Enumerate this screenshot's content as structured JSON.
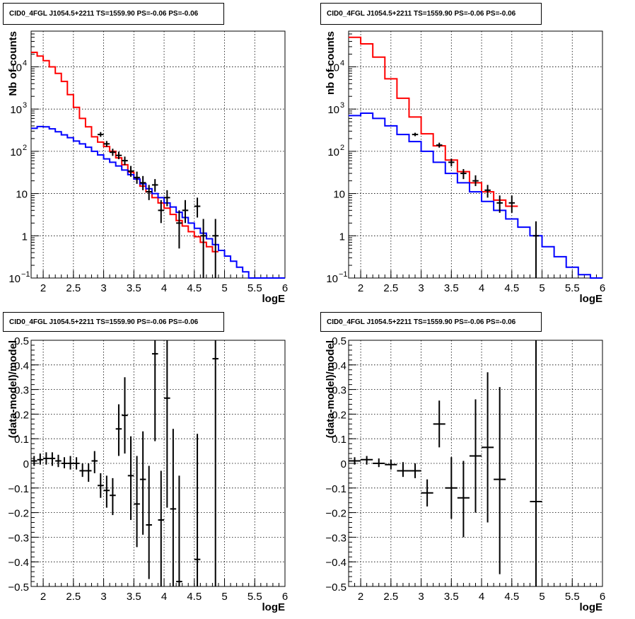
{
  "chart_data": [
    {
      "type": "line",
      "title": "CID0_4FGL J1054.5+2211 TS=1559.90 PS=-0.06 PS=-0.06",
      "xlabel": "logE",
      "ylabel": "Nb of counts",
      "xlim": [
        1.8,
        6
      ],
      "ylim": [
        0.1,
        70000
      ],
      "yscale": "log",
      "grid": true,
      "xticks": [
        "2",
        "2.5",
        "3",
        "3.5",
        "4",
        "4.5",
        "5",
        "5.5",
        "6"
      ],
      "yticks": [
        {
          "value": 0.1,
          "label": "10",
          "sup": "−1"
        },
        {
          "value": 1,
          "label": "1",
          "sup": ""
        },
        {
          "value": 10,
          "label": "10",
          "sup": ""
        },
        {
          "value": 100,
          "label": "10",
          "sup": "2"
        },
        {
          "value": 1000,
          "label": "10",
          "sup": "3"
        },
        {
          "value": 10000,
          "label": "10",
          "sup": "4"
        }
      ],
      "series": [
        {
          "kind": "hist",
          "color": "#ff0000",
          "edges": [
            1.8,
            1.9,
            2.0,
            2.1,
            2.2,
            2.3,
            2.4,
            2.5,
            2.6,
            2.7,
            2.8,
            2.9,
            3.0,
            3.1,
            3.2,
            3.3,
            3.4,
            3.5,
            3.6,
            3.7,
            3.8,
            3.9,
            4.0,
            4.1,
            4.2,
            4.3,
            4.4,
            4.5,
            4.6,
            4.7,
            4.8,
            4.9
          ],
          "values": [
            22000,
            18000,
            14000,
            10000,
            7000,
            4500,
            2200,
            1100,
            600,
            380,
            220,
            165,
            130,
            100,
            70,
            48,
            32,
            22,
            15,
            11,
            8,
            6,
            4.5,
            3.2,
            2.3,
            1.7,
            1.25,
            0.95,
            0.7,
            0.55,
            0.42
          ]
        },
        {
          "kind": "hist",
          "color": "#0000ff",
          "edges": [
            1.8,
            1.9,
            2.0,
            2.1,
            2.2,
            2.3,
            2.4,
            2.5,
            2.6,
            2.7,
            2.8,
            2.9,
            3.0,
            3.1,
            3.2,
            3.3,
            3.4,
            3.5,
            3.6,
            3.7,
            3.8,
            3.9,
            4.0,
            4.1,
            4.2,
            4.3,
            4.4,
            4.5,
            4.6,
            4.7,
            4.8,
            4.9,
            5.0,
            5.1,
            5.2,
            5.3,
            5.4,
            5.5,
            5.6,
            5.7,
            5.8,
            5.9,
            6.0
          ],
          "values": [
            350,
            385,
            380,
            340,
            290,
            245,
            210,
            175,
            150,
            125,
            100,
            82,
            66,
            55,
            45,
            36,
            28,
            22,
            17,
            13,
            10,
            8,
            6,
            4.8,
            3.6,
            2.7,
            2.0,
            1.5,
            1.15,
            0.85,
            0.62,
            0.45,
            0.33,
            0.25,
            0.18,
            0.14,
            0.1,
            0.1,
            0.1,
            0.1,
            0.1,
            0.1
          ]
        },
        {
          "kind": "points",
          "color": "#000000",
          "points": [
            {
              "x": 2.95,
              "y": 250,
              "ylo": 220,
              "yhi": 285
            },
            {
              "x": 3.05,
              "y": 150,
              "ylo": 128,
              "yhi": 175
            },
            {
              "x": 3.15,
              "y": 95,
              "ylo": 78,
              "yhi": 115
            },
            {
              "x": 3.25,
              "y": 80,
              "ylo": 65,
              "yhi": 98
            },
            {
              "x": 3.35,
              "y": 60,
              "ylo": 47,
              "yhi": 75
            },
            {
              "x": 3.45,
              "y": 34,
              "ylo": 25,
              "yhi": 45
            },
            {
              "x": 3.55,
              "y": 24,
              "ylo": 17,
              "yhi": 33
            },
            {
              "x": 3.65,
              "y": 18,
              "ylo": 12,
              "yhi": 26
            },
            {
              "x": 3.75,
              "y": 11,
              "ylo": 7,
              "yhi": 16
            },
            {
              "x": 3.85,
              "y": 16,
              "ylo": 11,
              "yhi": 22
            },
            {
              "x": 3.95,
              "y": 4,
              "ylo": 2,
              "yhi": 7
            },
            {
              "x": 4.05,
              "y": 8,
              "ylo": 5,
              "yhi": 12
            },
            {
              "x": 4.25,
              "y": 2,
              "ylo": 0.5,
              "yhi": 4
            },
            {
              "x": 4.35,
              "y": 4,
              "ylo": 2,
              "yhi": 7
            },
            {
              "x": 4.55,
              "y": 5,
              "ylo": 2.7,
              "yhi": 8
            },
            {
              "x": 4.65,
              "y": 1,
              "ylo": 0.1,
              "yhi": 2.5
            },
            {
              "x": 4.85,
              "y": 1,
              "ylo": 0.1,
              "yhi": 2.5
            }
          ]
        }
      ]
    },
    {
      "type": "line",
      "title": "CID0_4FGL J1054.5+2211 TS=1559.90 PS=-0.06 PS=-0.06",
      "xlabel": "logE",
      "ylabel": "nb of counts",
      "xlim": [
        1.8,
        6
      ],
      "ylim": [
        0.1,
        70000
      ],
      "yscale": "log",
      "grid": true,
      "xticks": [
        "2",
        "2.5",
        "3",
        "3.5",
        "4",
        "4.5",
        "5",
        "5.5",
        "6"
      ],
      "yticks": [
        {
          "value": 0.1,
          "label": "10",
          "sup": "−1"
        },
        {
          "value": 1,
          "label": "1",
          "sup": ""
        },
        {
          "value": 10,
          "label": "10",
          "sup": ""
        },
        {
          "value": 100,
          "label": "10",
          "sup": "2"
        },
        {
          "value": 1000,
          "label": "10",
          "sup": "3"
        },
        {
          "value": 10000,
          "label": "10",
          "sup": "4"
        }
      ],
      "series": [
        {
          "kind": "hist",
          "color": "#ff0000",
          "edges": [
            1.8,
            2.0,
            2.2,
            2.4,
            2.6,
            2.8,
            3.0,
            3.2,
            3.4,
            3.6,
            3.8,
            4.0,
            4.2,
            4.4,
            4.6
          ],
          "values": [
            50000,
            35000,
            17000,
            5200,
            1800,
            650,
            260,
            135,
            62,
            33,
            18,
            11,
            7,
            5
          ]
        },
        {
          "kind": "hist",
          "color": "#0000ff",
          "edges": [
            1.8,
            2.0,
            2.2,
            2.4,
            2.6,
            2.8,
            3.0,
            3.2,
            3.4,
            3.6,
            3.8,
            4.0,
            4.2,
            4.4,
            4.6,
            4.8,
            5.0,
            5.2,
            5.4,
            5.6,
            5.8,
            6.0
          ],
          "values": [
            700,
            800,
            600,
            400,
            250,
            170,
            100,
            55,
            30,
            18,
            11,
            6.5,
            4,
            2.5,
            1.6,
            1.0,
            0.55,
            0.32,
            0.18,
            0.12,
            0.1
          ]
        },
        {
          "kind": "points",
          "color": "#000000",
          "points": [
            {
              "x": 2.9,
              "y": 250,
              "ylo": 228,
              "yhi": 275
            },
            {
              "x": 3.3,
              "y": 140,
              "ylo": 122,
              "yhi": 160
            },
            {
              "x": 3.5,
              "y": 55,
              "ylo": 44,
              "yhi": 67
            },
            {
              "x": 3.7,
              "y": 30,
              "ylo": 22,
              "yhi": 38
            },
            {
              "x": 3.9,
              "y": 20,
              "ylo": 15,
              "yhi": 27
            },
            {
              "x": 4.1,
              "y": 12,
              "ylo": 8,
              "yhi": 16
            },
            {
              "x": 4.3,
              "y": 6,
              "ylo": 3.5,
              "yhi": 9
            },
            {
              "x": 4.5,
              "y": 6,
              "ylo": 3.5,
              "yhi": 9
            },
            {
              "x": 4.9,
              "y": 1,
              "ylo": 0.1,
              "yhi": 2.2
            }
          ]
        }
      ]
    },
    {
      "type": "scatter",
      "title": "CID0_4FGL J1054.5+2211 TS=1559.90 PS=-0.06 PS=-0.06",
      "xlabel": "logE",
      "ylabel": "(data-model)/model",
      "xlim": [
        1.8,
        6
      ],
      "ylim": [
        -0.5,
        0.5
      ],
      "yscale": "linear",
      "grid": true,
      "xticks": [
        "2",
        "2.5",
        "3",
        "3.5",
        "4",
        "4.5",
        "5",
        "5.5",
        "6"
      ],
      "ytick_labels": [
        "−0.5",
        "−0.4",
        "−0.3",
        "−0.2",
        "−0.1",
        "0",
        "0.1",
        "0.2",
        "0.3",
        "0.4",
        "0.5"
      ],
      "series": [
        {
          "kind": "points",
          "color": "#000000",
          "points": [
            {
              "x": 1.85,
              "xerr": 0.05,
              "y": 0.01,
              "ylo": -0.01,
              "yhi": 0.03
            },
            {
              "x": 1.95,
              "xerr": 0.05,
              "y": 0.015,
              "ylo": -0.005,
              "yhi": 0.04
            },
            {
              "x": 2.05,
              "xerr": 0.05,
              "y": 0.02,
              "ylo": -0.005,
              "yhi": 0.045
            },
            {
              "x": 2.15,
              "xerr": 0.05,
              "y": 0.02,
              "ylo": -0.01,
              "yhi": 0.045
            },
            {
              "x": 2.25,
              "xerr": 0.05,
              "y": 0.01,
              "ylo": -0.015,
              "yhi": 0.035
            },
            {
              "x": 2.35,
              "xerr": 0.05,
              "y": 0.0,
              "ylo": -0.02,
              "yhi": 0.025
            },
            {
              "x": 2.45,
              "xerr": 0.05,
              "y": 0.0,
              "ylo": -0.025,
              "yhi": 0.03
            },
            {
              "x": 2.55,
              "xerr": 0.05,
              "y": 0.0,
              "ylo": -0.025,
              "yhi": 0.025
            },
            {
              "x": 2.65,
              "xerr": 0.05,
              "y": -0.03,
              "ylo": -0.055,
              "yhi": 0.0
            },
            {
              "x": 2.75,
              "xerr": 0.05,
              "y": -0.03,
              "ylo": -0.075,
              "yhi": 0.0
            },
            {
              "x": 2.85,
              "xerr": 0.05,
              "y": 0.01,
              "ylo": -0.04,
              "yhi": 0.05
            },
            {
              "x": 2.95,
              "xerr": 0.05,
              "y": -0.09,
              "ylo": -0.14,
              "yhi": -0.04
            },
            {
              "x": 3.05,
              "xerr": 0.05,
              "y": -0.11,
              "ylo": -0.18,
              "yhi": -0.05
            },
            {
              "x": 3.15,
              "xerr": 0.05,
              "y": -0.13,
              "ylo": -0.21,
              "yhi": -0.06
            },
            {
              "x": 3.25,
              "xerr": 0.05,
              "y": 0.14,
              "ylo": 0.03,
              "yhi": 0.24
            },
            {
              "x": 3.35,
              "xerr": 0.05,
              "y": 0.195,
              "ylo": 0.04,
              "yhi": 0.35
            },
            {
              "x": 3.45,
              "xerr": 0.05,
              "y": -0.05,
              "ylo": -0.23,
              "yhi": 0.11
            },
            {
              "x": 3.55,
              "xerr": 0.05,
              "y": -0.165,
              "ylo": -0.34,
              "yhi": 0.03
            },
            {
              "x": 3.65,
              "xerr": 0.05,
              "y": -0.065,
              "ylo": -0.29,
              "yhi": 0.13
            },
            {
              "x": 3.75,
              "xerr": 0.05,
              "y": -0.25,
              "ylo": -0.47,
              "yhi": -0.01
            },
            {
              "x": 3.85,
              "xerr": 0.05,
              "y": 0.445,
              "ylo": 0.09,
              "yhi": 0.5
            },
            {
              "x": 3.95,
              "xerr": 0.05,
              "y": -0.23,
              "ylo": -0.5,
              "yhi": -0.03
            },
            {
              "x": 4.05,
              "xerr": 0.05,
              "y": 0.265,
              "ylo": -0.18,
              "yhi": 0.5
            },
            {
              "x": 4.15,
              "xerr": 0.05,
              "y": -0.185,
              "ylo": -0.5,
              "yhi": 0.14
            },
            {
              "x": 4.25,
              "xerr": 0.05,
              "y": -0.48,
              "ylo": -0.5,
              "yhi": -0.05
            },
            {
              "x": 4.55,
              "xerr": 0.05,
              "y": -0.39,
              "ylo": -0.5,
              "yhi": 0.12
            },
            {
              "x": 4.85,
              "xerr": 0.05,
              "y": 0.425,
              "ylo": -0.5,
              "yhi": 0.5
            }
          ]
        }
      ]
    },
    {
      "type": "scatter",
      "title": "CID0_4FGL J1054.5+2211 TS=1559.90 PS=-0.06 PS=-0.06",
      "xlabel": "logE",
      "ylabel": "(data-model)/model",
      "xlim": [
        1.8,
        6
      ],
      "ylim": [
        -0.5,
        0.5
      ],
      "yscale": "linear",
      "grid": true,
      "xticks": [
        "2",
        "2.5",
        "3",
        "3.5",
        "4",
        "4.5",
        "5",
        "5.5",
        "6"
      ],
      "ytick_labels": [
        "−0.5",
        "−0.4",
        "−0.3",
        "−0.2",
        "−0.1",
        "0",
        "0.1",
        "0.2",
        "0.3",
        "0.4",
        "0.5"
      ],
      "series": [
        {
          "kind": "points",
          "color": "#000000",
          "points": [
            {
              "x": 1.9,
              "xerr": 0.1,
              "y": 0.01,
              "ylo": -0.005,
              "yhi": 0.025
            },
            {
              "x": 2.1,
              "xerr": 0.1,
              "y": 0.015,
              "ylo": -0.005,
              "yhi": 0.03
            },
            {
              "x": 2.3,
              "xerr": 0.1,
              "y": 0.0,
              "ylo": -0.015,
              "yhi": 0.02
            },
            {
              "x": 2.5,
              "xerr": 0.1,
              "y": -0.005,
              "ylo": -0.025,
              "yhi": 0.015
            },
            {
              "x": 2.7,
              "xerr": 0.1,
              "y": -0.03,
              "ylo": -0.055,
              "yhi": 0.005
            },
            {
              "x": 2.9,
              "xerr": 0.1,
              "y": -0.03,
              "ylo": -0.06,
              "yhi": 0.0
            },
            {
              "x": 3.1,
              "xerr": 0.1,
              "y": -0.12,
              "ylo": -0.175,
              "yhi": -0.065
            },
            {
              "x": 3.3,
              "xerr": 0.1,
              "y": 0.16,
              "ylo": 0.065,
              "yhi": 0.255
            },
            {
              "x": 3.5,
              "xerr": 0.1,
              "y": -0.1,
              "ylo": -0.225,
              "yhi": 0.025
            },
            {
              "x": 3.7,
              "xerr": 0.1,
              "y": -0.14,
              "ylo": -0.3,
              "yhi": 0.01
            },
            {
              "x": 3.9,
              "xerr": 0.1,
              "y": 0.03,
              "ylo": -0.2,
              "yhi": 0.26
            },
            {
              "x": 4.1,
              "xerr": 0.1,
              "y": 0.065,
              "ylo": -0.24,
              "yhi": 0.37
            },
            {
              "x": 4.3,
              "xerr": 0.1,
              "y": -0.065,
              "ylo": -0.45,
              "yhi": 0.31
            },
            {
              "x": 4.9,
              "xerr": 0.1,
              "y": -0.155,
              "ylo": -0.5,
              "yhi": 0.5
            }
          ]
        }
      ]
    }
  ]
}
